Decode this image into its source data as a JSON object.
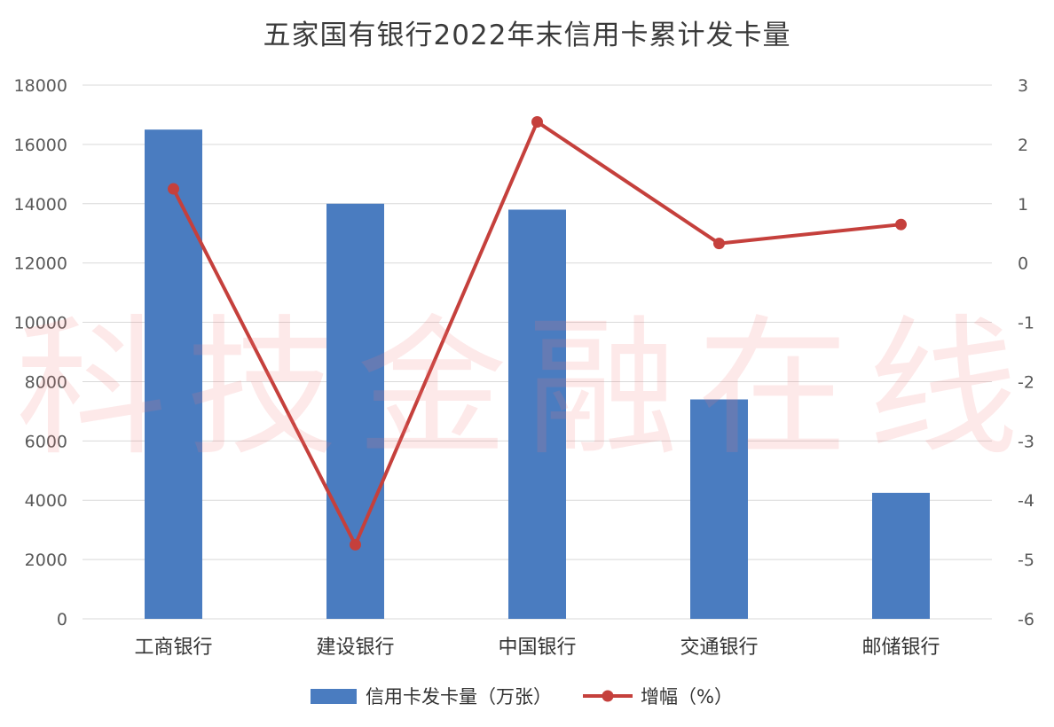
{
  "chart_data": {
    "type": "bar",
    "title": "五家国有银行2022年末信用卡累计发卡量",
    "categories": [
      "工商银行",
      "建设银行",
      "中国银行",
      "交通银行",
      "邮储银行"
    ],
    "series": [
      {
        "name": "信用卡发卡量（万张）",
        "type": "bar",
        "axis": "left",
        "values": [
          16500,
          14000,
          13800,
          7400,
          4250
        ]
      },
      {
        "name": "增幅（%）",
        "type": "line",
        "axis": "right",
        "values": [
          1.25,
          -4.75,
          2.38,
          0.33,
          0.65
        ]
      }
    ],
    "y_left": {
      "lim": [
        0,
        18000
      ],
      "ticks": [
        "0",
        "2000",
        "4000",
        "6000",
        "8000",
        "10000",
        "12000",
        "14000",
        "16000",
        "18000"
      ]
    },
    "y_right": {
      "lim": [
        -6,
        3
      ],
      "ticks": [
        "-6",
        "-5",
        "-4",
        "-3",
        "-2",
        "-1",
        "0",
        "1",
        "2",
        "3"
      ]
    },
    "grid": true,
    "legend": "bottom",
    "colors": {
      "bar": "#4a7cc0",
      "line": "#c5403c",
      "grid": "#d9d9d9",
      "text": "#595959"
    }
  },
  "watermark": "科技金融在线"
}
